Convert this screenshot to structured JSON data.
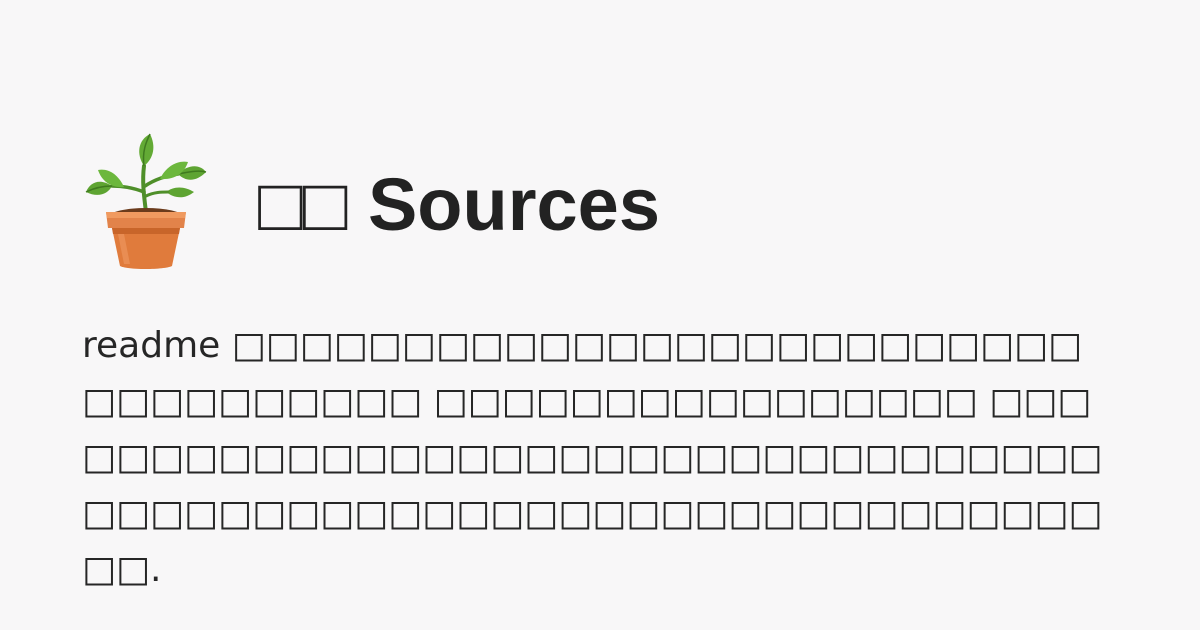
{
  "logo": {
    "icon": "potted-plant-icon",
    "pot_color": "#e07b3c",
    "leaf_color": "#5ea432"
  },
  "title": "□□ Sources",
  "description": "readme □□□□□□□□□□□□□□□□□□□□□□□□□□□□□□□□□□□ □□□□□□□□□□□□□□□□ □□□□□□□□□□□□□□□□□□□□□□□□□□□□□□□□□□□□□□□□□□□□□□□□□□□□□□□□□□□□□□□□□."
}
